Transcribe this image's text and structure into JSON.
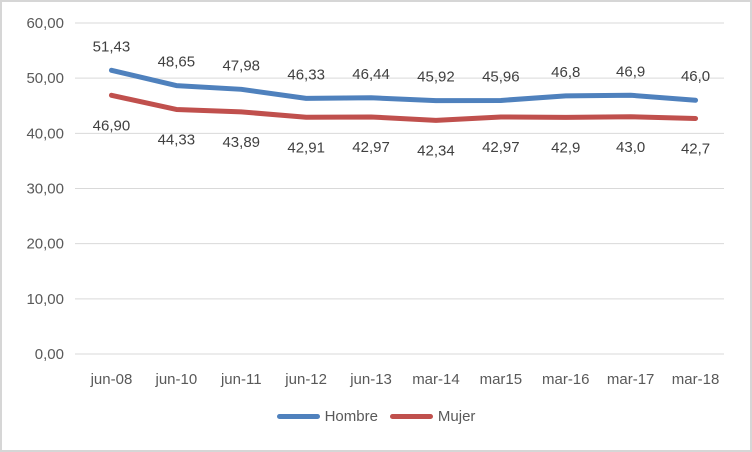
{
  "chart_data": {
    "type": "line",
    "title": "",
    "xlabel": "",
    "ylabel": "",
    "categories": [
      "jun-08",
      "jun-10",
      "jun-11",
      "jun-12",
      "jun-13",
      "mar-14",
      "mar15",
      "mar-16",
      "mar-17",
      "mar-18"
    ],
    "series": [
      {
        "name": "Hombre",
        "color": "#4F81BD",
        "values": [
          51.43,
          48.65,
          47.98,
          46.33,
          46.44,
          45.92,
          45.96,
          46.8,
          46.9,
          46.0
        ],
        "labels": [
          "51,43",
          "48,65",
          "47,98",
          "46,33",
          "46,44",
          "45,92",
          "45,96",
          "46,8",
          "46,9",
          "46,0"
        ],
        "label_side": "above"
      },
      {
        "name": "Mujer",
        "color": "#C0504D",
        "values": [
          46.9,
          44.33,
          43.89,
          42.91,
          42.97,
          42.34,
          42.97,
          42.9,
          43.0,
          42.7
        ],
        "labels": [
          "46,90",
          "44,33",
          "43,89",
          "42,91",
          "42,97",
          "42,34",
          "42,97",
          "42,9",
          "43,0",
          "42,7"
        ],
        "label_side": "below"
      }
    ],
    "ylim": [
      0,
      60
    ],
    "y_tick_values": [
      0,
      10,
      20,
      30,
      40,
      50,
      60
    ],
    "y_tick_labels": [
      "0,00",
      "10,00",
      "20,00",
      "30,00",
      "40,00",
      "50,00",
      "60,00"
    ],
    "grid": true,
    "legend_position": "bottom",
    "colors": {
      "gridline": "#d9d9d9",
      "axis_text": "#595959",
      "data_label_text": "#404040",
      "background": "#ffffff",
      "frame_border": "#d6d6d6"
    }
  }
}
